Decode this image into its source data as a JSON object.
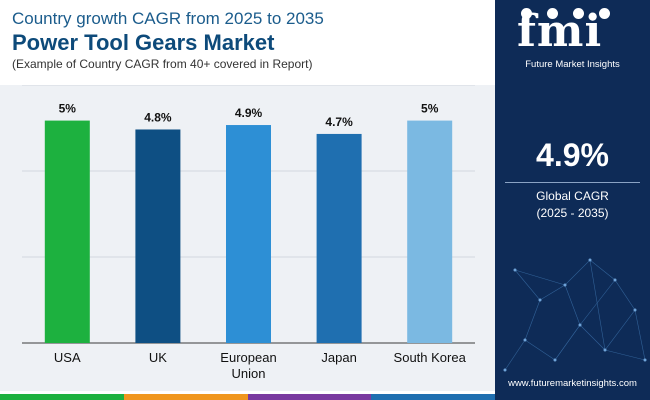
{
  "header": {
    "line1": "Country growth CAGR from 2025 to 2035",
    "line2": "Power Tool Gears Market",
    "line3": "(Example of Country CAGR from 40+ covered in Report)"
  },
  "chart_data": {
    "type": "bar",
    "categories": [
      "USA",
      "UK",
      "European Union",
      "Japan",
      "South Korea"
    ],
    "category_lines": [
      [
        "USA"
      ],
      [
        "UK"
      ],
      [
        "European",
        "Union"
      ],
      [
        "Japan"
      ],
      [
        "South Korea"
      ]
    ],
    "values": [
      5.0,
      4.8,
      4.9,
      4.7,
      5.0
    ],
    "value_labels": [
      "5%",
      "4.8%",
      "4.9%",
      "4.7%",
      "5%"
    ],
    "bar_colors": [
      "#1db13f",
      "#0e4f83",
      "#2d8fd5",
      "#1f6fb0",
      "#7bb9e2"
    ],
    "ylim": [
      0,
      5.8
    ],
    "grid": true,
    "title": "",
    "xlabel": "",
    "ylabel": ""
  },
  "bottom_strip_colors": [
    "#1db13f",
    "#f0961e",
    "#7a3aa0",
    "#1f6fb0"
  ],
  "sidebar": {
    "logo_text": "fmi",
    "logo_subtitle": "Future Market Insights",
    "global_value": "4.9%",
    "global_label": "Global CAGR",
    "global_years": "(2025 - 2035)",
    "website": "www.futuremarketinsights.com"
  },
  "colors": {
    "sidebar_bg": "#0e2b57",
    "chart_bg": "#eef1f5",
    "title_dark": "#0d4a7a"
  }
}
